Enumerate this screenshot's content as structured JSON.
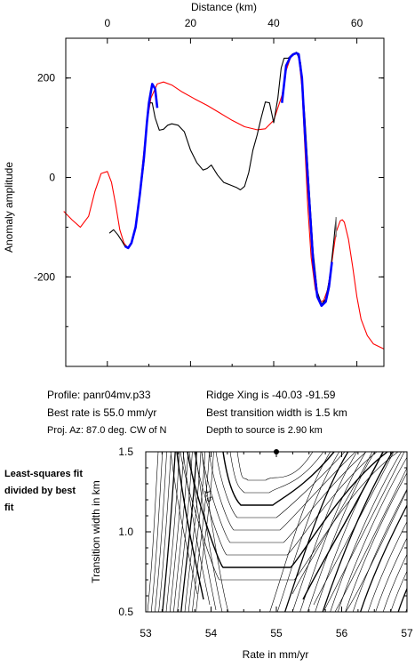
{
  "chart_data": [
    {
      "type": "line",
      "title": "",
      "xlabel": "Distance (km)",
      "ylabel": "Anomaly amplitude",
      "xlim": [
        -10,
        66.5
      ],
      "ylim": [
        -380,
        280
      ],
      "x_ticks": [
        "0",
        "20",
        "40",
        "60"
      ],
      "x_tick_values": [
        0,
        20,
        40,
        60
      ],
      "y_ticks": [
        "200",
        "0",
        "-200"
      ],
      "y_tick_values": [
        200,
        0,
        -200
      ],
      "grid": false,
      "series": [
        {
          "color": "#ff0000",
          "x": [
            -10.5,
            -8.5,
            -6.5,
            -4.5,
            -3.0,
            -1.5,
            0.0,
            1.0,
            2.0,
            3.0,
            4.0,
            4.8,
            5.5,
            6.5,
            7.5,
            8.5,
            9.5,
            10.5,
            12.0,
            13.5,
            15.5,
            18.0,
            21.0,
            24.0,
            27.0,
            30.0,
            33.0,
            36.0,
            38.0,
            40.0,
            42.0,
            43.0,
            44.0,
            44.8,
            45.5,
            46.0,
            46.8,
            47.5,
            48.2,
            49.0,
            50.0,
            51.0,
            52.0,
            53.0,
            54.0,
            55.0,
            56.0,
            56.5,
            57.0,
            58.0,
            59.0,
            60.0,
            61.0,
            62.5,
            64.0,
            66.5
          ],
          "y": [
            -68,
            -85,
            -100,
            -78,
            -28,
            8,
            12,
            -10,
            -55,
            -105,
            -132,
            -140,
            -138,
            -110,
            -55,
            30,
            110,
            160,
            188,
            192,
            186,
            172,
            158,
            145,
            130,
            115,
            102,
            96,
            98,
            115,
            165,
            215,
            240,
            248,
            250,
            246,
            180,
            60,
            -60,
            -160,
            -225,
            -250,
            -248,
            -225,
            -170,
            -110,
            -87,
            -85,
            -90,
            -125,
            -180,
            -240,
            -285,
            -318,
            -335,
            -345
          ]
        },
        {
          "color": "#000000",
          "x": [
            0.5,
            1.5,
            2.5,
            3.5,
            4.2,
            5.0,
            5.8,
            6.8,
            7.8,
            8.8,
            9.5,
            10.0,
            10.8,
            11.5,
            12.5,
            13.5,
            14.5,
            15.5,
            17.0,
            18.5,
            20.0,
            21.5,
            23.0,
            24.0,
            25.0,
            26.5,
            28.0,
            29.5,
            31.0,
            32.0,
            33.0,
            34.0,
            35.0,
            36.0,
            37.0,
            38.0,
            39.0,
            40.0,
            41.0,
            41.8,
            42.5,
            43.5,
            44.5,
            45.5,
            46.5,
            47.5,
            48.5,
            49.5,
            50.5,
            51.5,
            52.5,
            53.5,
            54.5,
            55.0
          ],
          "y": [
            -112,
            -105,
            -115,
            -128,
            -138,
            -140,
            -132,
            -100,
            -40,
            30,
            105,
            150,
            150,
            120,
            95,
            97,
            105,
            108,
            105,
            92,
            55,
            30,
            15,
            18,
            25,
            5,
            -10,
            -15,
            -20,
            -25,
            -18,
            10,
            55,
            85,
            120,
            152,
            150,
            110,
            160,
            220,
            240,
            240,
            248,
            252,
            230,
            120,
            -20,
            -150,
            -230,
            -255,
            -245,
            -200,
            -125,
            -80
          ]
        },
        {
          "color": "#0000ff",
          "x": [
            4.2,
            5.0,
            5.8,
            6.8,
            7.8,
            8.8,
            9.5,
            10.0,
            10.8,
            11.5,
            12.0
          ],
          "y": [
            -138,
            -142,
            -132,
            -100,
            -35,
            40,
            110,
            150,
            188,
            178,
            140
          ]
        },
        {
          "color": "#0000ff",
          "x": [
            42.0,
            43.0,
            44.0,
            44.8,
            45.5,
            46.0,
            46.8,
            47.5,
            48.5,
            49.5,
            50.5,
            51.5,
            52.5,
            53.3,
            54.0
          ],
          "y": [
            150,
            225,
            242,
            248,
            250,
            248,
            200,
            90,
            -40,
            -170,
            -240,
            -258,
            -250,
            -220,
            -170
          ]
        }
      ]
    },
    {
      "type": "contour",
      "title": "",
      "xlabel": "Rate in mm/yr",
      "ylabel": "Transition width in km",
      "xlim": [
        53,
        57
      ],
      "ylim": [
        0.5,
        1.5
      ],
      "x_ticks": [
        "53",
        "54",
        "55",
        "56",
        "57"
      ],
      "x_tick_values": [
        53,
        54,
        55,
        56,
        57
      ],
      "y_ticks": [
        "1.5",
        "1.0",
        "0.5"
      ],
      "y_tick_values": [
        1.5,
        1.0,
        0.5
      ],
      "contour_label": "1.5",
      "best_fit": {
        "rate": 55.0,
        "width": 1.5
      },
      "grid": false
    }
  ],
  "info": {
    "profile": "Profile: panr04mv.p33",
    "ridge_xing": "Ridge Xing is -40.03 -91.59",
    "best_rate": "Best rate is 55.0 mm/yr",
    "best_width": "Best transition width is 1.5 km",
    "proj_az": "Proj. Az: 87.0 deg. CW of N",
    "depth": "Depth to source is   2.90 km"
  },
  "side_note": "Least-squares fit divided by best fit"
}
